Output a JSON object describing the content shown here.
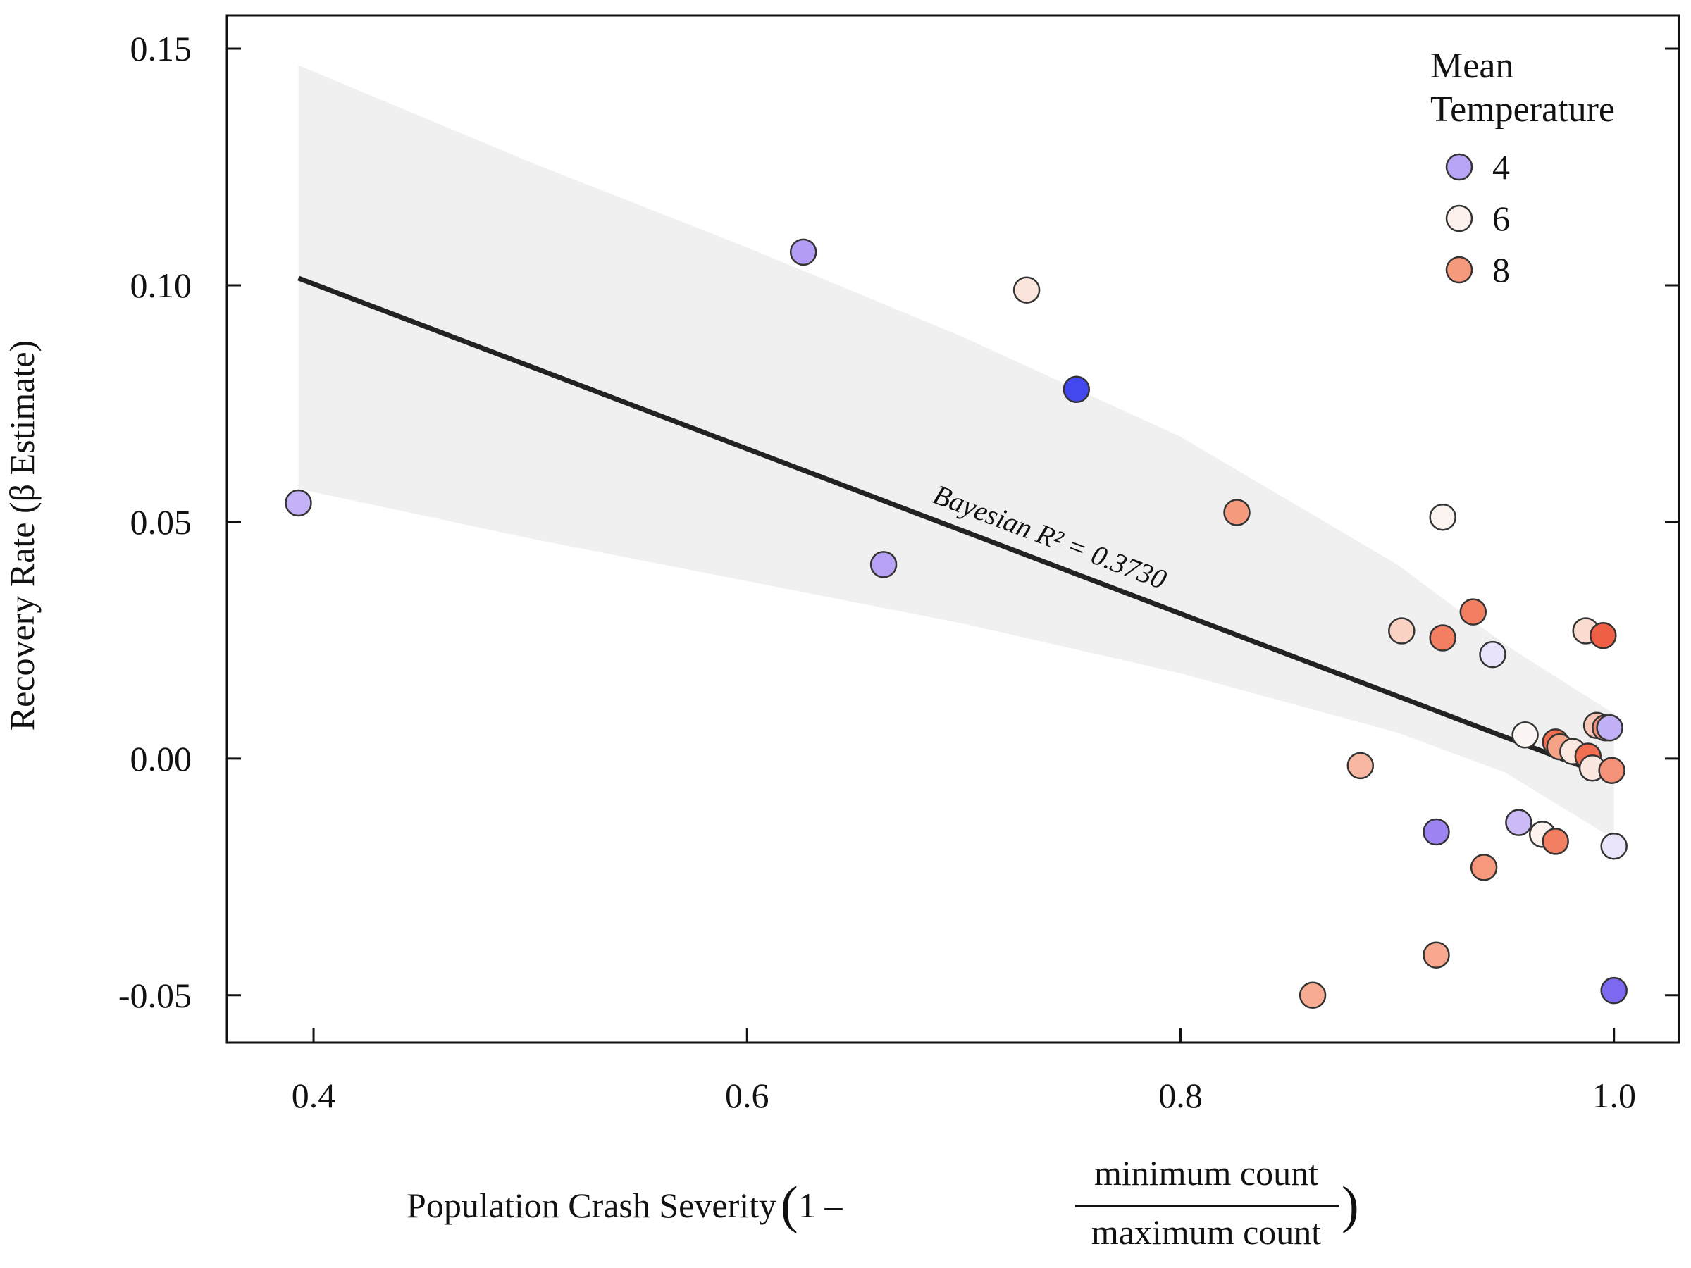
{
  "chart_data": {
    "type": "scatter",
    "xlabel": {
      "prefix": "Population Crash Severity",
      "one_minus": "1 –",
      "numerator": "minimum count",
      "denominator": "maximum count"
    },
    "ylabel": "Recovery Rate (β Estimate)",
    "xlim": [
      0.36,
      1.03
    ],
    "ylim": [
      -0.06,
      0.157
    ],
    "x_ticks": [
      0.4,
      0.6,
      0.8,
      1.0
    ],
    "x_tick_labels": [
      "0.4",
      "0.6",
      "0.8",
      "1.0"
    ],
    "y_ticks": [
      0.15,
      0.1,
      0.05,
      0.0,
      -0.05
    ],
    "y_tick_labels": [
      "0.15",
      "0.10",
      "0.05",
      "0.00",
      "-0.05"
    ],
    "grid": false,
    "legend": {
      "title_lines": [
        "Mean",
        "Temperature"
      ],
      "placement": "top-right",
      "entries": [
        {
          "label": "4",
          "color": "#b9a5f5"
        },
        {
          "label": "6",
          "color": "#fbf0ec"
        },
        {
          "label": "8",
          "color": "#f69a7e"
        }
      ]
    },
    "fit_line": {
      "x": [
        0.393,
        1.0
      ],
      "y": [
        0.1015,
        -0.0042
      ]
    },
    "ci_band": {
      "x": [
        0.393,
        0.5,
        0.6,
        0.7,
        0.8,
        0.9,
        0.95,
        1.0
      ],
      "upper": [
        0.1465,
        0.126,
        0.108,
        0.089,
        0.068,
        0.041,
        0.024,
        0.0095
      ],
      "lower": [
        0.057,
        0.0465,
        0.0375,
        0.0285,
        0.018,
        0.0055,
        -0.003,
        -0.017
      ]
    },
    "annotation": "Bayesian R² = 0.3730",
    "points": [
      {
        "x": 0.393,
        "y": 0.054,
        "color": "#c5b1f6"
      },
      {
        "x": 0.626,
        "y": 0.107,
        "color": "#b49df4"
      },
      {
        "x": 0.663,
        "y": 0.041,
        "color": "#b7a1f4"
      },
      {
        "x": 0.729,
        "y": 0.099,
        "color": "#fbe4dc"
      },
      {
        "x": 0.752,
        "y": 0.078,
        "color": "#4348ee"
      },
      {
        "x": 0.826,
        "y": 0.052,
        "color": "#f69a7e"
      },
      {
        "x": 0.861,
        "y": -0.05,
        "color": "#f7ab92"
      },
      {
        "x": 0.883,
        "y": -0.0015,
        "color": "#f8b7a2"
      },
      {
        "x": 0.902,
        "y": 0.027,
        "color": "#f9d2c4"
      },
      {
        "x": 0.918,
        "y": -0.0155,
        "color": "#9d84f2"
      },
      {
        "x": 0.918,
        "y": -0.0415,
        "color": "#f6a78d"
      },
      {
        "x": 0.921,
        "y": 0.051,
        "color": "#fcf4f1"
      },
      {
        "x": 0.921,
        "y": 0.0255,
        "color": "#f27f62"
      },
      {
        "x": 0.935,
        "y": 0.031,
        "color": "#f27f62"
      },
      {
        "x": 0.94,
        "y": -0.023,
        "color": "#f6987c"
      },
      {
        "x": 0.944,
        "y": 0.022,
        "color": "#e8e2fb"
      },
      {
        "x": 0.956,
        "y": -0.0135,
        "color": "#cbbaf6"
      },
      {
        "x": 0.959,
        "y": 0.005,
        "color": "#fbf6f4"
      },
      {
        "x": 0.967,
        "y": -0.016,
        "color": "#fcf3ef"
      },
      {
        "x": 0.973,
        "y": -0.0175,
        "color": "#f27f62"
      },
      {
        "x": 0.973,
        "y": 0.0035,
        "color": "#f16e50"
      },
      {
        "x": 0.975,
        "y": 0.0025,
        "color": "#f6a286"
      },
      {
        "x": 0.981,
        "y": 0.0015,
        "color": "#fbe8e1"
      },
      {
        "x": 0.987,
        "y": 0.027,
        "color": "#f9dbd0"
      },
      {
        "x": 0.988,
        "y": 0.0005,
        "color": "#f16e50"
      },
      {
        "x": 0.99,
        "y": -0.002,
        "color": "#fae7e0"
      },
      {
        "x": 0.992,
        "y": 0.007,
        "color": "#f8c7b7"
      },
      {
        "x": 0.995,
        "y": 0.026,
        "color": "#ee5f45"
      },
      {
        "x": 0.996,
        "y": 0.0065,
        "color": "#f5927a"
      },
      {
        "x": 0.998,
        "y": 0.0065,
        "color": "#c2b0f6"
      },
      {
        "x": 0.999,
        "y": -0.0025,
        "color": "#f5927a"
      },
      {
        "x": 1.0,
        "y": -0.0185,
        "color": "#ebe5fb"
      },
      {
        "x": 1.0,
        "y": -0.049,
        "color": "#7b6af0"
      }
    ]
  }
}
